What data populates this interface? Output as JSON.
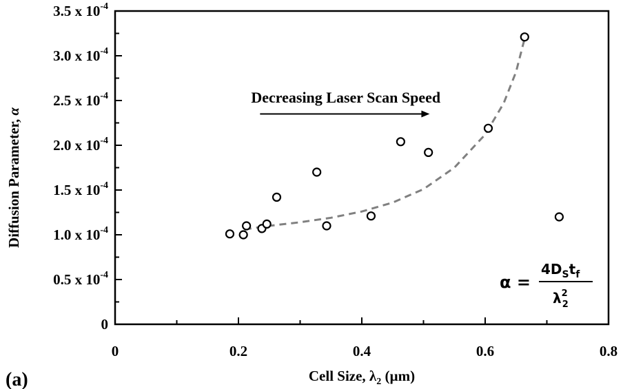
{
  "chart_data": {
    "type": "scatter",
    "xlabel": "Cell Size, λ",
    "xlabel_sub": "2",
    "xlabel_unit": " (µm)",
    "ylabel": "Diffusion Parameter, ",
    "ylabel_symbol": "α",
    "panel_label": "(a)",
    "xlim": [
      0,
      0.8
    ],
    "ylim": [
      0,
      0.00035
    ],
    "x_ticks": [
      0,
      0.2,
      0.4,
      0.6,
      0.8
    ],
    "x_tick_labels": [
      "0",
      "0.2",
      "0.4",
      "0.6",
      "0.8"
    ],
    "y_ticks": [
      0,
      5e-05,
      0.0001,
      0.00015,
      0.0002,
      0.00025,
      0.0003,
      0.00035
    ],
    "y_tick_labels": [
      {
        "mantissa": "0",
        "exp": ""
      },
      {
        "mantissa": "0.5 x 10",
        "exp": "-4"
      },
      {
        "mantissa": "1.0 x 10",
        "exp": "-4"
      },
      {
        "mantissa": "1.5 x 10",
        "exp": "-4"
      },
      {
        "mantissa": "2.0 x 10",
        "exp": "-4"
      },
      {
        "mantissa": "2.5 x 10",
        "exp": "-4"
      },
      {
        "mantissa": "3.0 x 10",
        "exp": "-4"
      },
      {
        "mantissa": "3.5 x 10",
        "exp": "-4"
      }
    ],
    "points": [
      {
        "x": 0.186,
        "y": 0.000101
      },
      {
        "x": 0.208,
        "y": 0.0001
      },
      {
        "x": 0.213,
        "y": 0.00011
      },
      {
        "x": 0.238,
        "y": 0.000107
      },
      {
        "x": 0.246,
        "y": 0.000112
      },
      {
        "x": 0.262,
        "y": 0.000142
      },
      {
        "x": 0.327,
        "y": 0.00017
      },
      {
        "x": 0.343,
        "y": 0.00011
      },
      {
        "x": 0.415,
        "y": 0.000121
      },
      {
        "x": 0.463,
        "y": 0.000204
      },
      {
        "x": 0.508,
        "y": 0.000192
      },
      {
        "x": 0.605,
        "y": 0.000219
      },
      {
        "x": 0.664,
        "y": 0.000321
      },
      {
        "x": 0.72,
        "y": 0.00012
      }
    ],
    "trend_line": {
      "style": "dashed",
      "color": "#808080",
      "points": [
        [
          0.21,
          0.000106
        ],
        [
          0.25,
          0.00011
        ],
        [
          0.3,
          0.000114
        ],
        [
          0.35,
          0.000119
        ],
        [
          0.4,
          0.000126
        ],
        [
          0.45,
          0.000136
        ],
        [
          0.5,
          0.000151
        ],
        [
          0.55,
          0.000175
        ],
        [
          0.6,
          0.000212
        ],
        [
          0.63,
          0.000247
        ],
        [
          0.65,
          0.000282
        ],
        [
          0.665,
          0.000322
        ]
      ]
    },
    "annotation": {
      "text": "Decreasing Laser Scan Speed",
      "arrow": {
        "x_start": 0.235,
        "x_end": 0.51,
        "y": 0.000235
      },
      "text_x": 0.374,
      "text_y": 0.000253
    },
    "formula": {
      "lhs": "α =",
      "numerator": "4D",
      "numerator_sub1": "S",
      "numerator_mid": "t",
      "numerator_sub2": "f",
      "denominator": "λ",
      "denominator_sup": "2",
      "denominator_sub": "2"
    }
  }
}
